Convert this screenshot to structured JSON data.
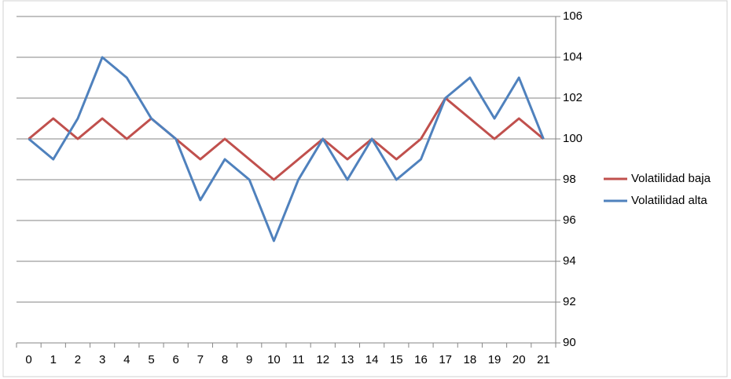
{
  "chart_data": {
    "type": "line",
    "categories": [
      "0",
      "1",
      "2",
      "3",
      "4",
      "5",
      "6",
      "7",
      "8",
      "9",
      "10",
      "11",
      "12",
      "13",
      "14",
      "15",
      "16",
      "17",
      "18",
      "19",
      "20",
      "21"
    ],
    "series": [
      {
        "name": "Volatilidad baja",
        "color": "#c0504d",
        "values": [
          100,
          101,
          100,
          101,
          100,
          101,
          100,
          99,
          100,
          99,
          98,
          99,
          100,
          99,
          100,
          99,
          100,
          102,
          101,
          100,
          101,
          100
        ]
      },
      {
        "name": "Volatilidad alta",
        "color": "#4f81bd",
        "values": [
          100,
          99,
          101,
          104,
          103,
          101,
          100,
          97,
          99,
          98,
          95,
          98,
          100,
          98,
          100,
          98,
          99,
          102,
          103,
          101,
          103,
          100
        ]
      }
    ],
    "ylim": [
      90,
      106
    ],
    "yticks": [
      90,
      92,
      94,
      96,
      98,
      100,
      102,
      104,
      106
    ],
    "y_axis_side": "right",
    "grid": true,
    "legend": "right"
  }
}
